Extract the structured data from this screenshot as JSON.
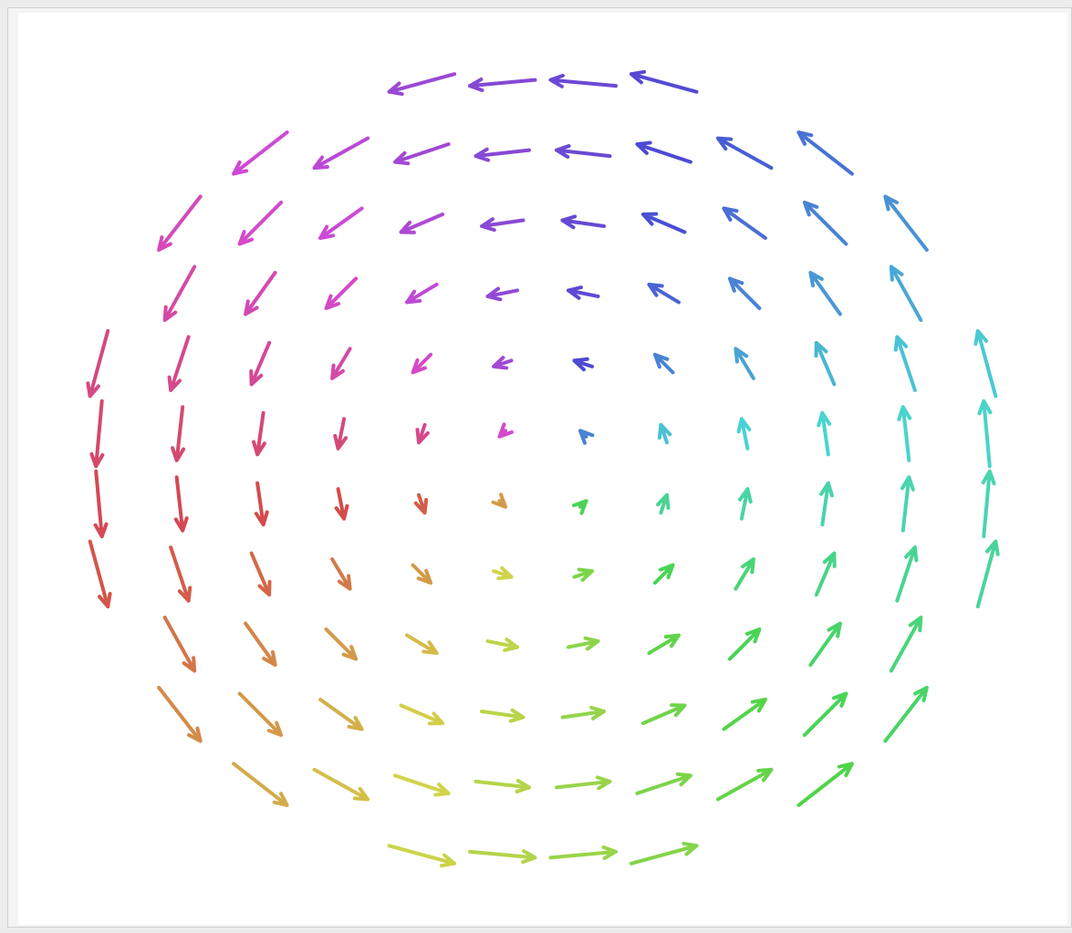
{
  "chart_data": {
    "type": "quiver",
    "color_by": "angle",
    "x": [
      -5.5,
      -4.5,
      -3.5,
      -2.5,
      -1.5,
      -0.5,
      0.5,
      1.5,
      2.5,
      3.5,
      4.5,
      5.5
    ],
    "y": [
      5.5,
      4.5,
      3.5,
      2.5,
      1.5,
      0.5,
      -0.5,
      -1.5,
      -2.5,
      -3.5,
      -4.5,
      -5.5
    ],
    "u": [
      [
        null,
        null,
        null,
        null,
        -5.5,
        -5.5,
        -5.5,
        -5.5,
        null,
        null,
        null,
        null
      ],
      [
        null,
        null,
        -4.5,
        -4.5,
        -4.5,
        -4.5,
        -4.5,
        -4.5,
        -4.5,
        -4.5,
        null,
        null
      ],
      [
        null,
        -3.5,
        -3.5,
        -3.5,
        -3.5,
        -3.5,
        -3.5,
        -3.5,
        -3.5,
        -3.5,
        -3.5,
        null
      ],
      [
        null,
        -2.5,
        -2.5,
        -2.5,
        -2.5,
        -2.5,
        -2.5,
        -2.5,
        -2.5,
        -2.5,
        -2.5,
        null
      ],
      [
        -1.5,
        -1.5,
        -1.5,
        -1.5,
        -1.5,
        -1.5,
        -1.5,
        -1.5,
        -1.5,
        -1.5,
        -1.5,
        -1.5
      ],
      [
        -0.5,
        -0.5,
        -0.5,
        -0.5,
        -0.5,
        -0.5,
        -0.5,
        -0.5,
        -0.5,
        -0.5,
        -0.5,
        -0.5
      ],
      [
        0.5,
        0.5,
        0.5,
        0.5,
        0.5,
        0.5,
        0.5,
        0.5,
        0.5,
        0.5,
        0.5,
        0.5
      ],
      [
        1.5,
        1.5,
        1.5,
        1.5,
        1.5,
        1.5,
        1.5,
        1.5,
        1.5,
        1.5,
        1.5,
        1.5
      ],
      [
        null,
        2.5,
        2.5,
        2.5,
        2.5,
        2.5,
        2.5,
        2.5,
        2.5,
        2.5,
        2.5,
        null
      ],
      [
        null,
        3.5,
        3.5,
        3.5,
        3.5,
        3.5,
        3.5,
        3.5,
        3.5,
        3.5,
        3.5,
        null
      ],
      [
        null,
        null,
        4.5,
        4.5,
        4.5,
        4.5,
        4.5,
        4.5,
        4.5,
        4.5,
        null,
        null
      ],
      [
        null,
        null,
        null,
        null,
        5.5,
        5.5,
        5.5,
        5.5,
        null,
        null,
        null,
        null
      ]
    ],
    "v": [
      [
        null,
        null,
        null,
        null,
        -1.5,
        -0.5,
        0.5,
        1.5,
        null,
        null,
        null,
        null
      ],
      [
        null,
        null,
        -3.5,
        -2.5,
        -1.5,
        -0.5,
        0.5,
        1.5,
        2.5,
        3.5,
        null,
        null
      ],
      [
        null,
        -4.5,
        -3.5,
        -2.5,
        -1.5,
        -0.5,
        0.5,
        1.5,
        2.5,
        3.5,
        4.5,
        null
      ],
      [
        null,
        -4.5,
        -3.5,
        -2.5,
        -1.5,
        -0.5,
        0.5,
        1.5,
        2.5,
        3.5,
        4.5,
        null
      ],
      [
        -5.5,
        -4.5,
        -3.5,
        -2.5,
        -1.5,
        -0.5,
        0.5,
        1.5,
        2.5,
        3.5,
        4.5,
        5.5
      ],
      [
        -5.5,
        -4.5,
        -3.5,
        -2.5,
        -1.5,
        -0.5,
        0.5,
        1.5,
        2.5,
        3.5,
        4.5,
        5.5
      ],
      [
        -5.5,
        -4.5,
        -3.5,
        -2.5,
        -1.5,
        -0.5,
        0.5,
        1.5,
        2.5,
        3.5,
        4.5,
        5.5
      ],
      [
        -5.5,
        -4.5,
        -3.5,
        -2.5,
        -1.5,
        -0.5,
        0.5,
        1.5,
        2.5,
        3.5,
        4.5,
        5.5
      ],
      [
        null,
        -4.5,
        -3.5,
        -2.5,
        -1.5,
        -0.5,
        0.5,
        1.5,
        2.5,
        3.5,
        4.5,
        null
      ],
      [
        null,
        -4.5,
        -3.5,
        -2.5,
        -1.5,
        -0.5,
        0.5,
        1.5,
        2.5,
        3.5,
        4.5,
        null
      ],
      [
        null,
        null,
        -3.5,
        -2.5,
        -1.5,
        -0.5,
        0.5,
        1.5,
        2.5,
        3.5,
        null,
        null
      ],
      [
        null,
        null,
        null,
        null,
        -1.5,
        -0.5,
        0.5,
        1.5,
        null,
        null,
        null,
        null
      ]
    ]
  }
}
